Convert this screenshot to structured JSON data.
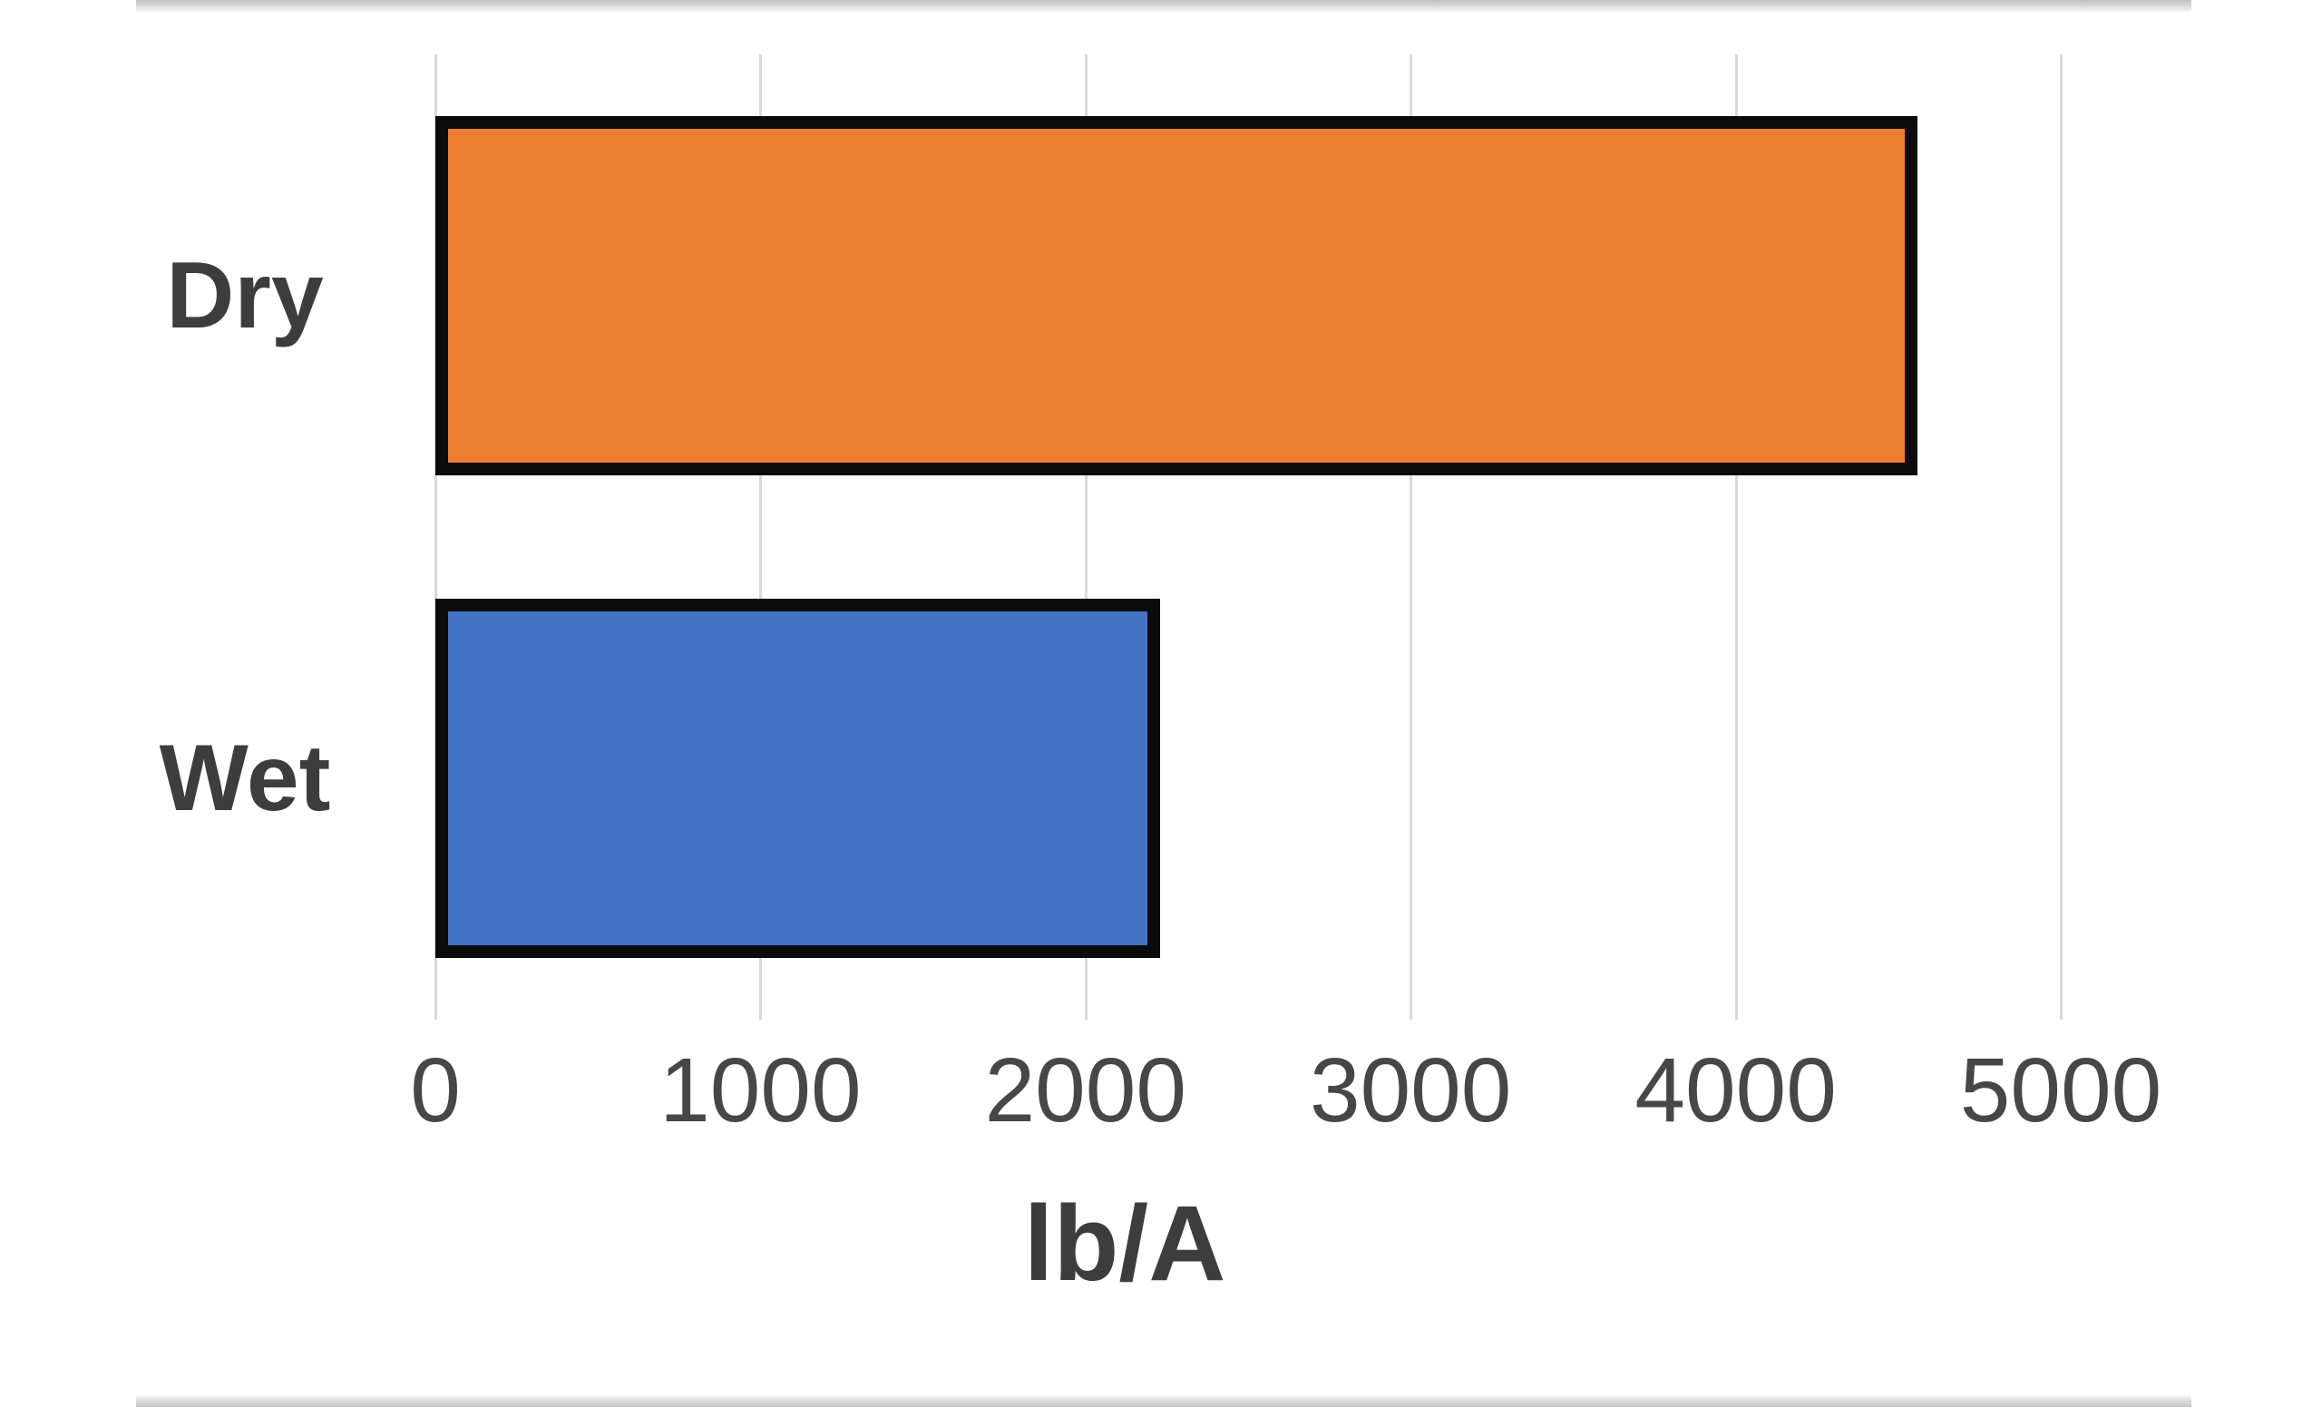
{
  "chart_data": {
    "type": "bar",
    "orientation": "horizontal",
    "title": "",
    "xlabel": "lb/A",
    "ylabel": "",
    "categories": [
      "Dry",
      "Wet"
    ],
    "values": [
      4560,
      2230
    ],
    "bar_colors": [
      "#ED7D31",
      "#4472C4"
    ],
    "bar_border_color": "#0b0b0b",
    "xlim": [
      0,
      5000
    ],
    "x_ticks": [
      "0",
      "1000",
      "2000",
      "3000",
      "4000",
      "5000"
    ],
    "x_tick_values": [
      0,
      1000,
      2000,
      3000,
      4000,
      5000
    ],
    "grid": true,
    "gridline_color": "#d9d9d9",
    "legend": "none",
    "label_color": "#3d3d3d",
    "tick_label_color": "#474747",
    "background_color": "#ffffff"
  },
  "frame": {
    "top_edge_strip": "page-edge",
    "bottom_edge_strip": "page-edge"
  }
}
